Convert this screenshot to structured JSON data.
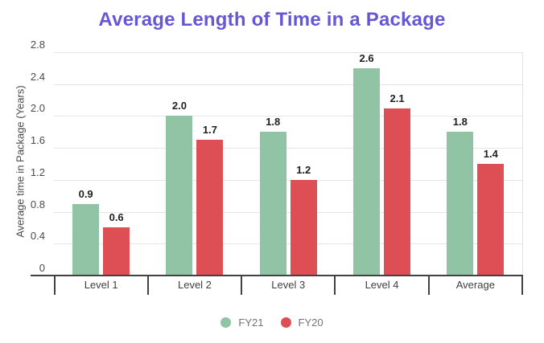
{
  "chart_data": {
    "type": "bar",
    "title": "Average Length of Time in a Package",
    "title_color": "#6557D6",
    "categories": [
      "Level 1",
      "Level 2",
      "Level 3",
      "Level 4",
      "Average"
    ],
    "series": [
      {
        "name": "FY21",
        "color": "#91C4A5",
        "values": [
          0.9,
          2.0,
          1.8,
          2.6,
          1.8
        ]
      },
      {
        "name": "FY20",
        "color": "#DE4F55",
        "values": [
          0.6,
          1.7,
          1.2,
          2.1,
          1.4
        ]
      }
    ],
    "xlabel": "",
    "ylabel": "Average time in Package (Years)",
    "ylim": [
      0,
      2.8
    ],
    "yticks": [
      "0",
      "0.4",
      "0.8",
      "1.2",
      "1.6",
      "2.0",
      "2.4",
      "2.8"
    ],
    "grid": true,
    "legend_position": "bottom",
    "value_labels": true,
    "value_label_format": "one_decimal"
  }
}
